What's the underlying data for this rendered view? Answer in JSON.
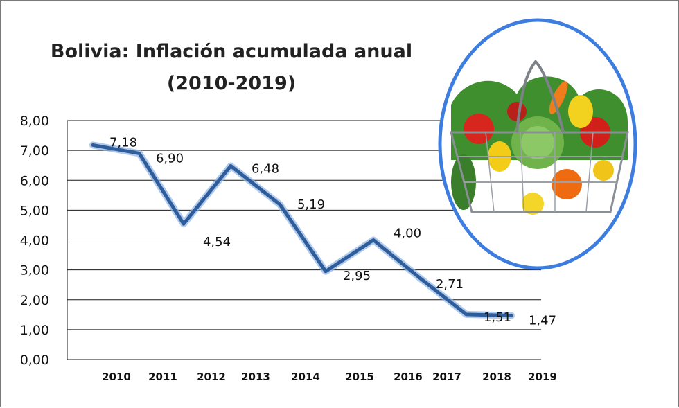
{
  "chart_data": {
    "type": "line",
    "title_line1": "Bolivia: Inflación acumulada anual",
    "title_line2": "(2010-2019)",
    "categories": [
      "2010",
      "2011",
      "2012",
      "2013",
      "2014",
      "2015",
      "2016",
      "2017",
      "2018",
      "2019"
    ],
    "series": [
      {
        "values": [
          7.18,
          6.9,
          4.54,
          6.48,
          5.19,
          2.95,
          4.0,
          2.71,
          1.51,
          1.47
        ],
        "labels": [
          "7,18",
          "6,90",
          "4,54",
          "6,48",
          "5,19",
          "2,95",
          "4,00",
          "2,71",
          "1,51",
          "1,47"
        ]
      }
    ],
    "y_ticks": [
      "0,00",
      "1,00",
      "2,00",
      "3,00",
      "4,00",
      "5,00",
      "6,00",
      "7,00",
      "8,00"
    ],
    "ylim": [
      0,
      8
    ],
    "grid": true,
    "legend": "none",
    "line_color": "#2f5d9b",
    "line_glow_color": "#8fb4e3",
    "decoration": "vegetable-basket-illustration",
    "decoration_border_color": "#3d7de0"
  }
}
